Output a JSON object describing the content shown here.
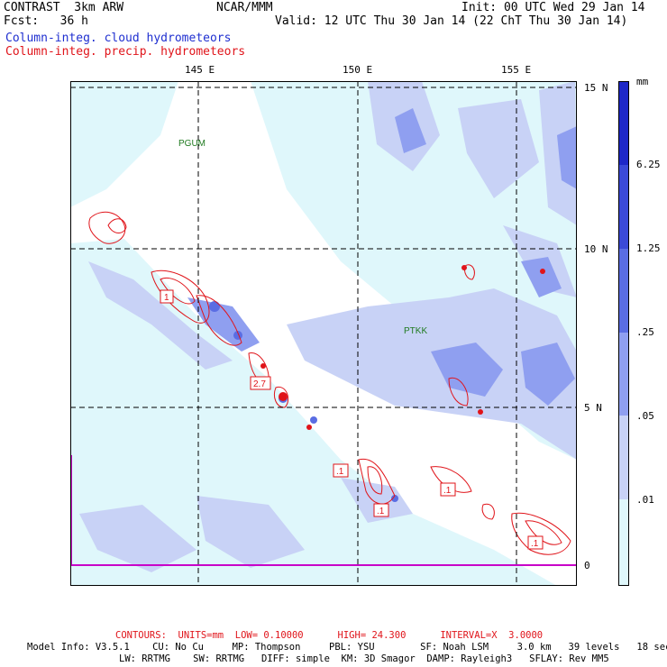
{
  "header": {
    "model": "CONTRAST  3km ARW",
    "center": "NCAR/MMM",
    "init": "Init: 00 UTC Wed 29 Jan 14",
    "fcst": "Fcst:   36 h",
    "valid": "Valid: 12 UTC Thu 30 Jan 14 (22 ChT Thu 30 Jan 14)",
    "field_cloud": "Column-integ. cloud hydrometeors",
    "field_precip": "Column-integ. precip. hydrometeors"
  },
  "map": {
    "lon_labels": [
      "145 E",
      "150 E",
      "155 E"
    ],
    "lat_labels": [
      "15 N",
      "10 N",
      "5 N",
      "0"
    ],
    "stations": [
      "PGUM",
      "PTKK"
    ],
    "contour_labels": [
      "1",
      "2.7",
      ".1",
      ".1",
      ".1",
      ".1"
    ],
    "colors": {
      "level1": "#dff7fb",
      "level2": "#c8d2f6",
      "level3": "#8f9ff0",
      "level4": "#5a6de3",
      "level5": "#3b4ad8",
      "level6": "#1e28c8",
      "contour": "#e0141a",
      "equator": "#c800c8"
    }
  },
  "colorbar": {
    "unit": "mm",
    "labels": [
      "6.25",
      "1.25",
      ".25",
      ".05",
      ".01"
    ],
    "colors": [
      "#1e28c8",
      "#3b4ad8",
      "#5a6de3",
      "#8f9ff0",
      "#c8d2f6",
      "#dff7fb",
      "#ffffff"
    ]
  },
  "footer": {
    "contours": "CONTOURS:  UNITS=mm  LOW= 0.10000      HIGH= 24.300      INTERVAL=X  3.0000",
    "model_info_1": "Model Info: V3.5.1    CU: No Cu     MP: Thompson     PBL: YSU        SF: Noah LSM     3.0 km   39 levels   18 sec",
    "model_info_2": "LW: RRTMG    SW: RRTMG   DIFF: simple  KM: 3D Smagor  DAMP: Rayleigh3   SFLAY: Rev MM5"
  }
}
